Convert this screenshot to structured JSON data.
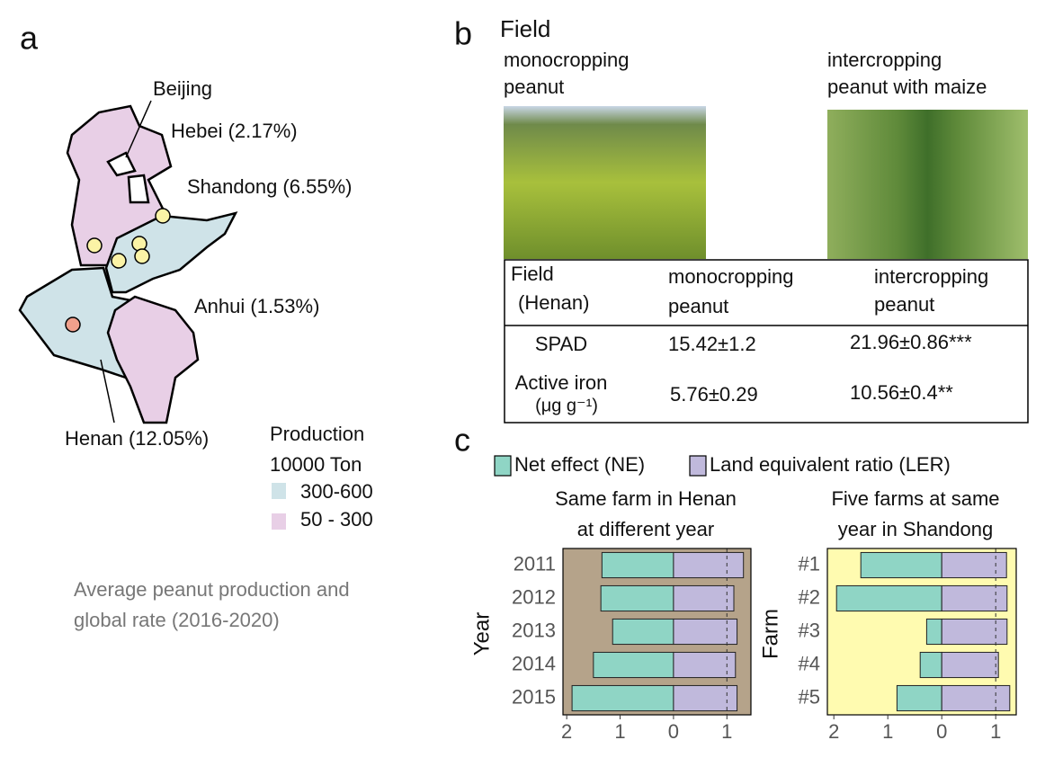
{
  "panel_a": {
    "label": "a",
    "map_labels": [
      "Beijing",
      "Hebei (2.17%)",
      "Shandong (6.55%)",
      "Anhui (1.53%)",
      "Henan (12.05%)"
    ],
    "legend": {
      "title": [
        "Production",
        "10000 Ton"
      ],
      "items": [
        {
          "label": "300-600",
          "color": "#cfe3e8"
        },
        {
          "label": "50 - 300",
          "color": "#e8cfe6"
        }
      ]
    },
    "caption": [
      "Average peanut production and",
      "global rate (2016-2020)"
    ]
  },
  "panel_b": {
    "label": "b",
    "title": "Field",
    "photos": [
      [
        "monocropping",
        "peanut"
      ],
      [
        "intercropping",
        "peanut with maize"
      ]
    ],
    "table": {
      "header": [
        [
          "Field",
          "(Henan)"
        ],
        [
          "monocropping",
          "peanut"
        ],
        [
          "intercropping",
          "peanut"
        ]
      ],
      "rows": [
        [
          [
            "SPAD"
          ],
          "15.42±1.2",
          "21.96±0.86***"
        ],
        [
          [
            "Active iron",
            "(μg g⁻¹)"
          ],
          "5.76±0.29",
          "10.56±0.4**"
        ]
      ]
    }
  },
  "panel_c": {
    "label": "c"
  },
  "chart_data": [
    {
      "type": "bar",
      "orientation": "horizontal",
      "title": [
        "Same farm in Henan",
        "at different year"
      ],
      "ylabel": "Year",
      "categories": [
        "2011",
        "2012",
        "2013",
        "2014",
        "2015"
      ],
      "series": [
        {
          "name": "Net effect (NE)",
          "color": "#8fd5c5",
          "values": [
            -1.34,
            -1.36,
            -1.14,
            -1.5,
            -1.9
          ]
        },
        {
          "name": "Land equivalent ratio (LER)",
          "color": "#c0b9dc",
          "values": [
            1.31,
            1.13,
            1.19,
            1.16,
            1.19
          ]
        }
      ],
      "xlim": [
        -2.07,
        1.45
      ],
      "xticks": [
        {
          "value": -2,
          "label": "2"
        },
        {
          "value": -1,
          "label": "1"
        },
        0,
        1
      ],
      "reference_line": 1,
      "background": "#b5a38a"
    },
    {
      "type": "bar",
      "orientation": "horizontal",
      "title": [
        "Five farms at same",
        "year in Shandong"
      ],
      "ylabel": "Farm",
      "categories": [
        "#1",
        "#2",
        "#3",
        "#4",
        "#5"
      ],
      "series": [
        {
          "name": "Net effect (NE)",
          "color": "#8fd5c5",
          "values": [
            -1.5,
            -1.95,
            -0.28,
            -0.4,
            -0.83
          ]
        },
        {
          "name": "Land equivalent ratio (LER)",
          "color": "#c0b9dc",
          "values": [
            1.2,
            1.21,
            1.21,
            1.05,
            1.26
          ]
        }
      ],
      "xlim": [
        -2.12,
        1.38
      ],
      "xticks": [
        {
          "value": -2,
          "label": "2"
        },
        {
          "value": -1,
          "label": "1"
        },
        0,
        1
      ],
      "reference_line": 1,
      "background": "#fffbb0"
    }
  ]
}
